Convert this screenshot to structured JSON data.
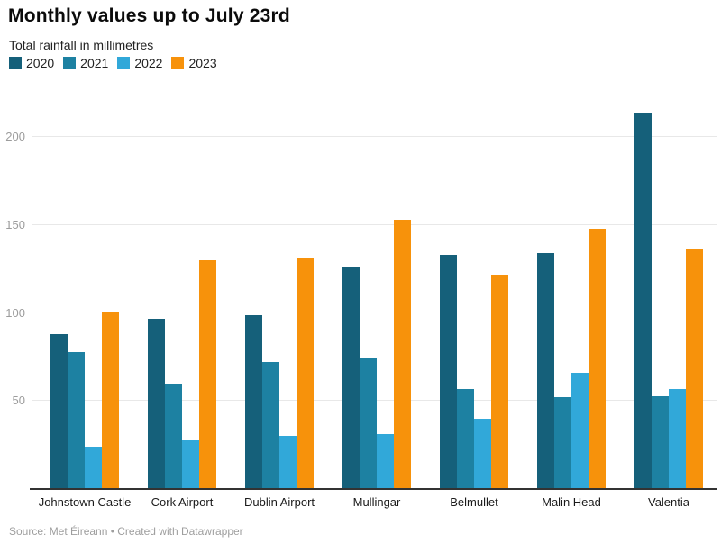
{
  "title": "Monthly values up to July 23rd",
  "subtitle": "Total rainfall in millimetres",
  "footer": "Source: Met Éireann • Created with Datawrapper",
  "colors": {
    "y2020": "#15607a",
    "y2021": "#1d81a2",
    "y2022": "#31a8d9",
    "y2023": "#f7920b",
    "gridline": "#e8e8e8",
    "axis_line": "#333333",
    "tick_text": "#9c9c9c"
  },
  "chart_data": {
    "type": "bar",
    "title": "Monthly values up to July 23rd",
    "subtitle": "Total rainfall in millimetres",
    "categories": [
      "Johnstown Castle",
      "Cork Airport",
      "Dublin Airport",
      "Mullingar",
      "Belmullet",
      "Malin Head",
      "Valentia"
    ],
    "series": [
      {
        "name": "2020",
        "color": "#15607a",
        "values": [
          88,
          97,
          99,
          126,
          133,
          134,
          214
        ]
      },
      {
        "name": "2021",
        "color": "#1d81a2",
        "values": [
          78,
          60,
          72,
          75,
          57,
          52,
          53
        ]
      },
      {
        "name": "2022",
        "color": "#31a8d9",
        "values": [
          24,
          28,
          30,
          31,
          40,
          66,
          57
        ]
      },
      {
        "name": "2023",
        "color": "#f7920b",
        "values": [
          101,
          130,
          131,
          153,
          122,
          148,
          137
        ]
      }
    ],
    "xlabel": "",
    "ylabel": "",
    "yticks": [
      50,
      100,
      150,
      200
    ],
    "ylim": [
      0,
      232
    ],
    "grid": true,
    "legend_position": "top",
    "legend_entries": [
      "2020",
      "2021",
      "2022",
      "2023"
    ]
  }
}
